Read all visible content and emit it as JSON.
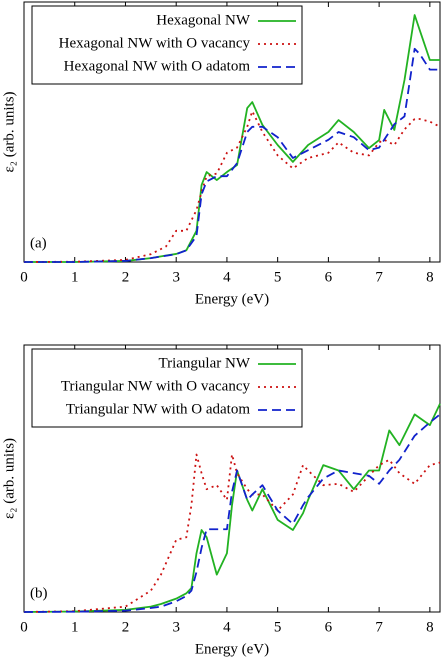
{
  "chart_data": [
    {
      "type": "line",
      "annotation": "(a)",
      "xlabel": "Energy (eV)",
      "ylabel": "ε₂ (arb. units)",
      "xlim": [
        0,
        8.2
      ],
      "xticks": [
        0,
        1,
        2,
        3,
        4,
        5,
        6,
        7,
        8
      ],
      "ylim": [
        0,
        100
      ],
      "legend": "top-left",
      "x": [
        0,
        1,
        2,
        2.5,
        2.8,
        3,
        3.2,
        3.4,
        3.5,
        3.6,
        3.8,
        4,
        4.2,
        4.4,
        4.5,
        4.7,
        5,
        5.3,
        5.6,
        6,
        6.2,
        6.5,
        6.8,
        7,
        7.1,
        7.3,
        7.5,
        7.7,
        7.8,
        8,
        8.2
      ],
      "series": [
        {
          "name": "Hexagonal NW",
          "color": "#22b222",
          "style": "solid",
          "values": [
            0,
            0,
            0.4,
            1.5,
            2.5,
            3.1,
            4.5,
            12,
            29.6,
            34.6,
            31.5,
            34.6,
            37.3,
            59.2,
            61.5,
            52.7,
            45,
            38.5,
            45,
            50,
            54.6,
            50,
            43.8,
            46.9,
            58.5,
            50.8,
            70,
            95,
            89.2,
            77.7,
            77.7
          ]
        },
        {
          "name": "Hexagonal NW with O vacancy",
          "color": "#cc1111",
          "style": "dotted",
          "values": [
            0,
            0.1,
            0.8,
            3,
            6,
            12,
            12,
            20,
            27,
            33,
            34,
            42,
            44,
            52,
            58,
            50,
            41,
            36,
            40,
            42,
            46,
            42,
            41,
            46,
            47,
            45,
            51,
            55,
            55,
            54,
            52
          ]
        },
        {
          "name": "Hexagonal NW with O adatom",
          "color": "#1122cc",
          "style": "dashed",
          "values": [
            0,
            0,
            0.4,
            1.5,
            2.4,
            3,
            4.5,
            10,
            26,
            31,
            33,
            33,
            38,
            50,
            52,
            52,
            48,
            40,
            43,
            47,
            50,
            48,
            43,
            44,
            47,
            53,
            56,
            82,
            80,
            74,
            74
          ]
        }
      ]
    },
    {
      "type": "line",
      "annotation": "(b)",
      "xlabel": "Energy (eV)",
      "ylabel": "ε₂ (arb. units)",
      "xlim": [
        0,
        8.2
      ],
      "xticks": [
        0,
        1,
        2,
        3,
        4,
        5,
        6,
        7,
        8
      ],
      "ylim": [
        0,
        100
      ],
      "legend": "top-left",
      "x": [
        0,
        1,
        2,
        2.5,
        2.7,
        3,
        3.2,
        3.3,
        3.4,
        3.5,
        3.6,
        3.8,
        4,
        4.1,
        4.2,
        4.4,
        4.5,
        4.7,
        5,
        5.3,
        5.5,
        5.6,
        5.9,
        6.2,
        6.5,
        6.8,
        7,
        7.2,
        7.4,
        7.7,
        8,
        8.2
      ],
      "series": [
        {
          "name": "Triangular NW",
          "color": "#22b222",
          "style": "solid",
          "values": [
            0,
            0.2,
            0.8,
            2,
            3,
            5,
            7,
            9,
            22,
            30.7,
            28,
            14,
            22,
            40,
            53,
            42,
            38,
            46,
            34.5,
            30.7,
            37,
            42,
            55,
            53,
            46,
            53,
            53,
            68,
            62.5,
            74,
            70,
            78
          ]
        },
        {
          "name": "Triangular NW with O vacancy",
          "color": "#cc1111",
          "style": "dotted",
          "values": [
            0,
            0.3,
            2,
            8,
            14,
            27,
            28,
            40,
            59,
            52,
            46,
            47.5,
            42,
            59,
            52,
            46,
            44,
            44,
            38,
            44,
            55,
            53,
            47.5,
            48,
            45,
            51,
            55,
            57,
            52,
            48,
            55,
            56
          ]
        },
        {
          "name": "Triangular NW with O adatom",
          "color": "#1122cc",
          "style": "dashed",
          "values": [
            0,
            0.1,
            0.5,
            1.5,
            2,
            4,
            6,
            8,
            15,
            24,
            31,
            31,
            31,
            45,
            53,
            42,
            44,
            47.5,
            38,
            33,
            40,
            43,
            50,
            53,
            52,
            51,
            48,
            53,
            57,
            66,
            71,
            74
          ]
        }
      ]
    }
  ]
}
